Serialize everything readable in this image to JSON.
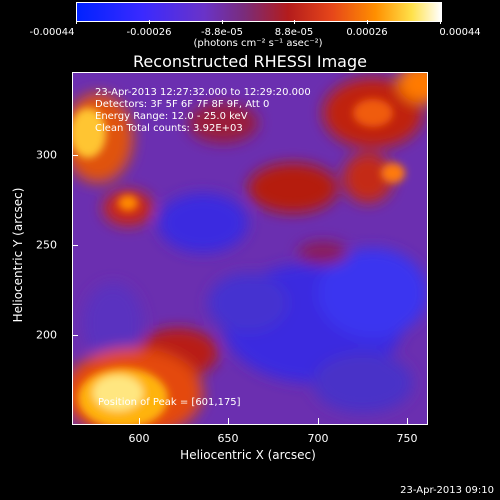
{
  "colorbar": {
    "ticks": [
      "-0.00044",
      "-0.00026",
      "-8.8e-05",
      "8.8e-05",
      "0.00026",
      "0.00044"
    ],
    "units": "(photons cm⁻² s⁻¹ asec⁻²)",
    "colors": [
      "#0022ff",
      "#6a33c8",
      "#b31c1c",
      "#ff8f00",
      "#ffffff"
    ]
  },
  "title": "Reconstructed RHESSI Image",
  "info_lines": [
    "23-Apr-2013 12:27:32.000 to 12:29:20.000",
    "Detectors: 3F 5F 6F 7F 8F 9F, Att 0",
    "Energy Range: 12.0 - 25.0 keV",
    "Clean    Total counts: 3.92E+03"
  ],
  "peak_label": "Position of Peak = [601,175]",
  "axes": {
    "xlabel": "Heliocentric X (arcsec)",
    "ylabel": "Heliocentric Y (arcsec)",
    "xticks": [
      "600",
      "650",
      "700",
      "750"
    ],
    "yticks": [
      "300",
      "250",
      "200"
    ]
  },
  "footer": "23-Apr-2013 09:10"
}
